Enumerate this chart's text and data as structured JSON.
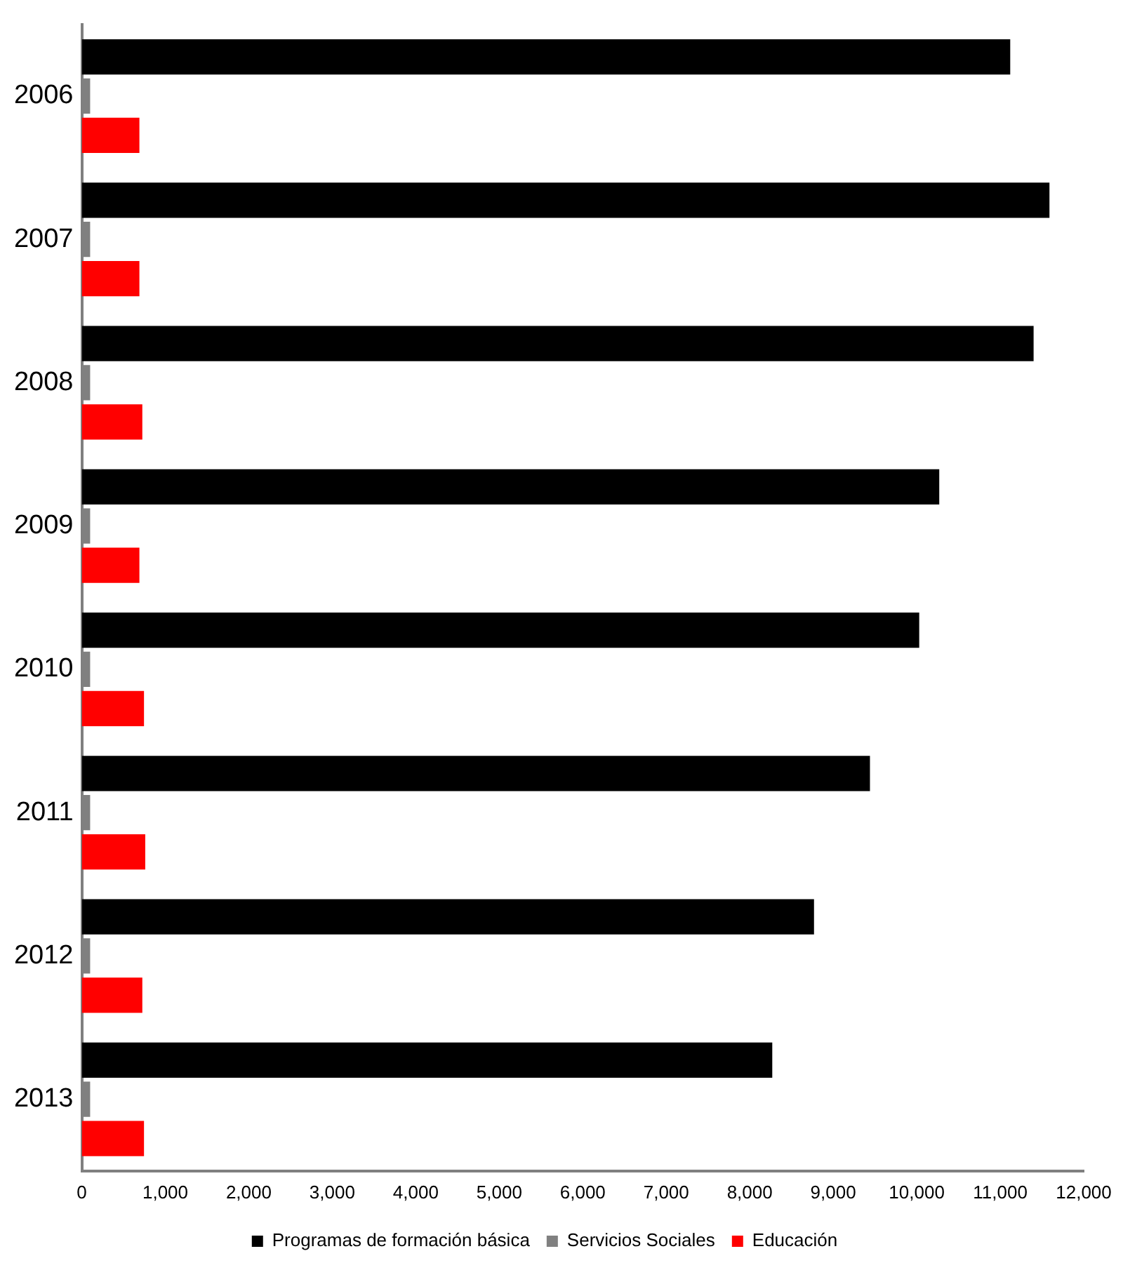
{
  "chart_data": {
    "type": "bar",
    "orientation": "horizontal",
    "categories": [
      "2006",
      "2007",
      "2008",
      "2009",
      "2010",
      "2011",
      "2012",
      "2013"
    ],
    "series": [
      {
        "name": "Programas de formación básica",
        "color": "#000000",
        "values": [
          11120,
          11590,
          11400,
          10270,
          10030,
          9440,
          8770,
          8270
        ]
      },
      {
        "name": "Servicios Sociales",
        "color": "#808080",
        "values": [
          100,
          100,
          100,
          100,
          100,
          100,
          100,
          100
        ]
      },
      {
        "name": "Educación",
        "color": "#ff0000",
        "values": [
          690,
          690,
          725,
          690,
          745,
          760,
          725,
          745
        ]
      }
    ],
    "xlim": [
      0,
      12000
    ],
    "xticks": [
      {
        "value": 0,
        "label": "0"
      },
      {
        "value": 1000,
        "label": "1,000"
      },
      {
        "value": 2000,
        "label": "2,000"
      },
      {
        "value": 3000,
        "label": "3,000"
      },
      {
        "value": 4000,
        "label": "4,000"
      },
      {
        "value": 5000,
        "label": "5,000"
      },
      {
        "value": 6000,
        "label": "6,000"
      },
      {
        "value": 7000,
        "label": "7,000"
      },
      {
        "value": 8000,
        "label": "8,000"
      },
      {
        "value": 9000,
        "label": "9,000"
      },
      {
        "value": 10000,
        "label": "10,000"
      },
      {
        "value": 11000,
        "label": "11,000"
      },
      {
        "value": 12000,
        "label": "12,000"
      }
    ],
    "grid": false,
    "legend": "bottom"
  }
}
